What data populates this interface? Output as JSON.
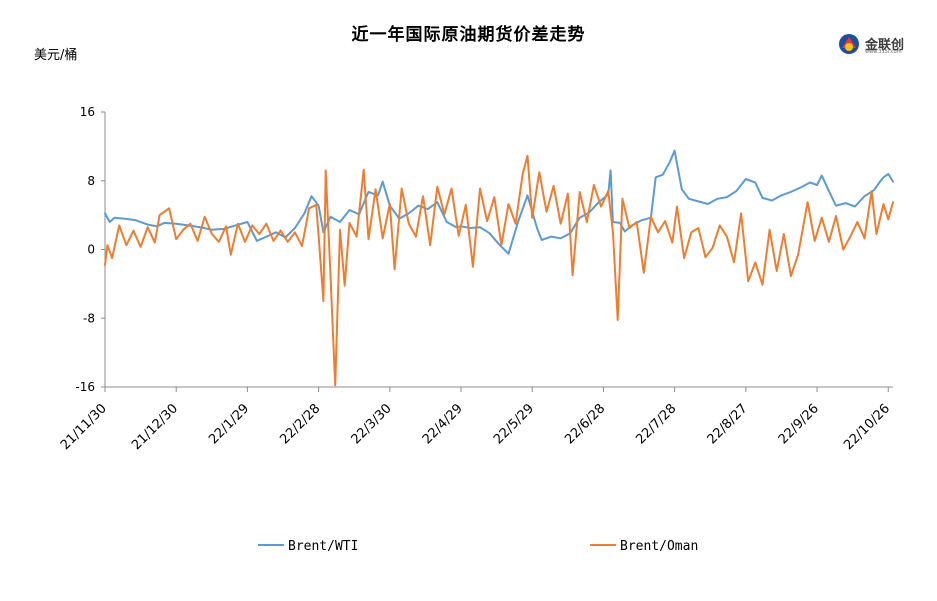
{
  "header": {
    "title": "近一年国际原油期货价差走势",
    "unit": "美元/桶",
    "logo_text": "金联创",
    "logo_sub": "www.315i.com"
  },
  "chart_data": {
    "type": "line",
    "title": "近一年国际原油期货价差走势",
    "ylabel": "美元/桶",
    "xlabel": "",
    "ylim": [
      -16,
      16
    ],
    "yticks": [
      -16,
      -8,
      0,
      8,
      16
    ],
    "x_range": [
      "21/11/30",
      "22/10/28"
    ],
    "x_ticks": [
      "21/11/30",
      "21/12/30",
      "22/1/29",
      "22/2/28",
      "22/3/30",
      "22/4/29",
      "22/5/29",
      "22/6/28",
      "22/7/28",
      "22/8/27",
      "22/9/26",
      "22/10/26"
    ],
    "legend_position": "bottom",
    "grid": false,
    "colors": {
      "Brent/WTI": "#5b9bd5",
      "Brent/Oman": "#ed7d31"
    },
    "series": [
      {
        "name": "Brent/WTI",
        "points": [
          [
            "21/11/30",
            4.2
          ],
          [
            "21/12/2",
            3.2
          ],
          [
            "21/12/4",
            3.7
          ],
          [
            "21/12/8",
            3.6
          ],
          [
            "21/12/13",
            3.4
          ],
          [
            "21/12/18",
            2.9
          ],
          [
            "21/12/22",
            2.7
          ],
          [
            "21/12/25",
            3.1
          ],
          [
            "21/12/30",
            3.0
          ],
          [
            "22/1/4",
            2.8
          ],
          [
            "22/1/9",
            2.6
          ],
          [
            "22/1/14",
            2.3
          ],
          [
            "22/1/19",
            2.4
          ],
          [
            "22/1/24",
            2.8
          ],
          [
            "22/1/29",
            3.2
          ],
          [
            "22/2/2",
            1.0
          ],
          [
            "22/2/6",
            1.5
          ],
          [
            "22/2/10",
            2.0
          ],
          [
            "22/2/14",
            1.4
          ],
          [
            "22/2/18",
            2.5
          ],
          [
            "22/2/22",
            4.2
          ],
          [
            "22/2/25",
            6.2
          ],
          [
            "22/2/28",
            5.1
          ],
          [
            "22/3/2",
            2.0
          ],
          [
            "22/3/5",
            3.8
          ],
          [
            "22/3/9",
            3.2
          ],
          [
            "22/3/13",
            4.6
          ],
          [
            "22/3/17",
            4.1
          ],
          [
            "22/3/21",
            6.7
          ],
          [
            "22/3/25",
            6.3
          ],
          [
            "22/3/27",
            7.9
          ],
          [
            "22/3/30",
            5.1
          ],
          [
            "22/4/3",
            3.6
          ],
          [
            "22/4/7",
            4.2
          ],
          [
            "22/4/11",
            5.1
          ],
          [
            "22/4/15",
            4.7
          ],
          [
            "22/4/19",
            5.5
          ],
          [
            "22/4/23",
            3.2
          ],
          [
            "22/4/27",
            2.6
          ],
          [
            "22/4/29",
            2.7
          ],
          [
            "22/5/3",
            2.5
          ],
          [
            "22/5/7",
            2.6
          ],
          [
            "22/5/11",
            1.9
          ],
          [
            "22/5/15",
            0.6
          ],
          [
            "22/5/19",
            -0.5
          ],
          [
            "22/5/23",
            3.2
          ],
          [
            "22/5/27",
            6.3
          ],
          [
            "22/5/31",
            2.5
          ],
          [
            "22/6/2",
            1.1
          ],
          [
            "22/6/6",
            1.5
          ],
          [
            "22/6/10",
            1.3
          ],
          [
            "22/6/14",
            1.9
          ],
          [
            "22/6/18",
            3.7
          ],
          [
            "22/6/22",
            4.3
          ],
          [
            "22/6/26",
            5.5
          ],
          [
            "22/6/30",
            6.4
          ],
          [
            "22/7/1",
            9.2
          ],
          [
            "22/7/2",
            3.2
          ],
          [
            "22/7/5",
            3.1
          ],
          [
            "22/7/7",
            2.1
          ],
          [
            "22/7/10",
            2.8
          ],
          [
            "22/7/14",
            3.4
          ],
          [
            "22/7/18",
            3.7
          ],
          [
            "22/7/20",
            8.4
          ],
          [
            "22/7/23",
            8.7
          ],
          [
            "22/7/26",
            10.2
          ],
          [
            "22/7/28",
            11.5
          ],
          [
            "22/7/31",
            7.0
          ],
          [
            "22/8/3",
            5.9
          ],
          [
            "22/8/7",
            5.6
          ],
          [
            "22/8/11",
            5.3
          ],
          [
            "22/8/15",
            5.9
          ],
          [
            "22/8/19",
            6.1
          ],
          [
            "22/8/23",
            6.8
          ],
          [
            "22/8/27",
            8.2
          ],
          [
            "22/8/31",
            7.8
          ],
          [
            "22/9/3",
            6.0
          ],
          [
            "22/9/7",
            5.7
          ],
          [
            "22/9/11",
            6.3
          ],
          [
            "22/9/15",
            6.7
          ],
          [
            "22/9/19",
            7.2
          ],
          [
            "22/9/23",
            7.8
          ],
          [
            "22/9/26",
            7.5
          ],
          [
            "22/9/28",
            8.6
          ],
          [
            "22/10/1",
            6.8
          ],
          [
            "22/10/4",
            5.1
          ],
          [
            "22/10/8",
            5.4
          ],
          [
            "22/10/12",
            5.0
          ],
          [
            "22/10/16",
            6.2
          ],
          [
            "22/10/20",
            6.9
          ],
          [
            "22/10/22",
            7.7
          ],
          [
            "22/10/24",
            8.4
          ],
          [
            "22/10/26",
            8.8
          ],
          [
            "22/10/28",
            7.9
          ]
        ]
      },
      {
        "name": "Brent/Oman",
        "points": [
          [
            "21/11/30",
            -1.8
          ],
          [
            "21/12/1",
            0.5
          ],
          [
            "21/12/3",
            -1.0
          ],
          [
            "21/12/6",
            2.8
          ],
          [
            "21/12/9",
            0.5
          ],
          [
            "21/12/12",
            2.2
          ],
          [
            "21/12/15",
            0.3
          ],
          [
            "21/12/18",
            2.6
          ],
          [
            "21/12/21",
            0.8
          ],
          [
            "21/12/23",
            4.0
          ],
          [
            "21/12/27",
            4.8
          ],
          [
            "21/12/30",
            1.2
          ],
          [
            "22/1/2",
            2.3
          ],
          [
            "22/1/5",
            3.0
          ],
          [
            "22/1/8",
            1.0
          ],
          [
            "22/1/11",
            3.8
          ],
          [
            "22/1/14",
            1.8
          ],
          [
            "22/1/17",
            0.9
          ],
          [
            "22/1/20",
            2.7
          ],
          [
            "22/1/22",
            -0.6
          ],
          [
            "22/1/25",
            3.0
          ],
          [
            "22/1/28",
            0.9
          ],
          [
            "22/1/31",
            2.8
          ],
          [
            "22/2/3",
            1.8
          ],
          [
            "22/2/6",
            3.0
          ],
          [
            "22/2/9",
            1.0
          ],
          [
            "22/2/12",
            2.2
          ],
          [
            "22/2/15",
            0.9
          ],
          [
            "22/2/18",
            2.0
          ],
          [
            "22/2/21",
            0.4
          ],
          [
            "22/2/24",
            4.8
          ],
          [
            "22/2/27",
            5.2
          ],
          [
            "22/2/28",
            1.6
          ],
          [
            "22/3/2",
            -6.0
          ],
          [
            "22/3/3",
            9.2
          ],
          [
            "22/3/5",
            -3.0
          ],
          [
            "22/3/7",
            -15.8
          ],
          [
            "22/3/9",
            2.3
          ],
          [
            "22/3/11",
            -4.2
          ],
          [
            "22/3/13",
            3.1
          ],
          [
            "22/3/16",
            1.5
          ],
          [
            "22/3/19",
            9.3
          ],
          [
            "22/3/21",
            1.2
          ],
          [
            "22/3/24",
            7.0
          ],
          [
            "22/3/27",
            1.3
          ],
          [
            "22/3/30",
            5.3
          ],
          [
            "22/4/1",
            -2.3
          ],
          [
            "22/4/4",
            7.1
          ],
          [
            "22/4/7",
            3.0
          ],
          [
            "22/4/10",
            1.5
          ],
          [
            "22/4/13",
            6.2
          ],
          [
            "22/4/16",
            0.5
          ],
          [
            "22/4/19",
            7.3
          ],
          [
            "22/4/22",
            4.1
          ],
          [
            "22/4/25",
            7.1
          ],
          [
            "22/4/28",
            1.6
          ],
          [
            "22/5/1",
            5.2
          ],
          [
            "22/5/4",
            -2.0
          ],
          [
            "22/5/7",
            7.1
          ],
          [
            "22/5/10",
            3.3
          ],
          [
            "22/5/13",
            6.1
          ],
          [
            "22/5/16",
            0.5
          ],
          [
            "22/5/19",
            5.3
          ],
          [
            "22/5/22",
            3.0
          ],
          [
            "22/5/25",
            8.8
          ],
          [
            "22/5/27",
            10.9
          ],
          [
            "22/5/29",
            3.7
          ],
          [
            "22/6/1",
            9.0
          ],
          [
            "22/6/4",
            4.4
          ],
          [
            "22/6/7",
            7.4
          ],
          [
            "22/6/10",
            3.0
          ],
          [
            "22/6/13",
            6.5
          ],
          [
            "22/6/15",
            -3.0
          ],
          [
            "22/6/18",
            6.7
          ],
          [
            "22/6/21",
            3.2
          ],
          [
            "22/6/24",
            7.5
          ],
          [
            "22/6/27",
            5.0
          ],
          [
            "22/6/30",
            6.8
          ],
          [
            "22/7/2",
            2.1
          ],
          [
            "22/7/4",
            -8.2
          ],
          [
            "22/7/6",
            5.9
          ],
          [
            "22/7/9",
            2.5
          ],
          [
            "22/7/12",
            3.2
          ],
          [
            "22/7/15",
            -2.7
          ],
          [
            "22/7/18",
            3.8
          ],
          [
            "22/7/21",
            2.0
          ],
          [
            "22/7/24",
            3.3
          ],
          [
            "22/7/27",
            0.8
          ],
          [
            "22/7/29",
            5.0
          ],
          [
            "22/8/1",
            -1.0
          ],
          [
            "22/8/4",
            2.0
          ],
          [
            "22/8/7",
            2.5
          ],
          [
            "22/8/10",
            -0.9
          ],
          [
            "22/8/13",
            0.2
          ],
          [
            "22/8/16",
            2.8
          ],
          [
            "22/8/19",
            1.5
          ],
          [
            "22/8/22",
            -1.5
          ],
          [
            "22/8/25",
            4.2
          ],
          [
            "22/8/28",
            -3.7
          ],
          [
            "22/8/31",
            -1.5
          ],
          [
            "22/9/3",
            -4.1
          ],
          [
            "22/9/6",
            2.3
          ],
          [
            "22/9/9",
            -2.5
          ],
          [
            "22/9/12",
            1.8
          ],
          [
            "22/9/15",
            -3.1
          ],
          [
            "22/9/18",
            -0.6
          ],
          [
            "22/9/22",
            5.5
          ],
          [
            "22/9/25",
            1.0
          ],
          [
            "22/9/28",
            3.7
          ],
          [
            "22/10/1",
            0.9
          ],
          [
            "22/10/4",
            3.9
          ],
          [
            "22/10/7",
            0.0
          ],
          [
            "22/10/10",
            1.5
          ],
          [
            "22/10/13",
            3.2
          ],
          [
            "22/10/16",
            1.3
          ],
          [
            "22/10/19",
            6.8
          ],
          [
            "22/10/21",
            1.8
          ],
          [
            "22/10/24",
            5.3
          ],
          [
            "22/10/26",
            3.5
          ],
          [
            "22/10/28",
            5.5
          ]
        ]
      }
    ]
  }
}
